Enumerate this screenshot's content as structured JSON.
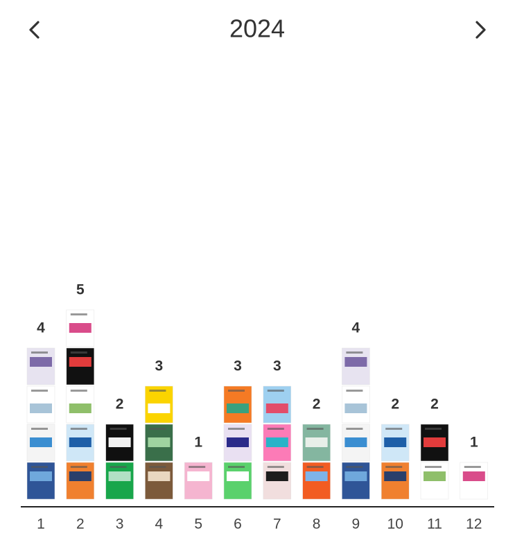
{
  "chart_data": {
    "type": "bar",
    "title": "2024",
    "categories": [
      "1",
      "2",
      "3",
      "4",
      "5",
      "6",
      "7",
      "8",
      "9",
      "10",
      "11",
      "12"
    ],
    "values": [
      4,
      5,
      2,
      3,
      1,
      3,
      3,
      2,
      4,
      2,
      2,
      1
    ]
  }
}
